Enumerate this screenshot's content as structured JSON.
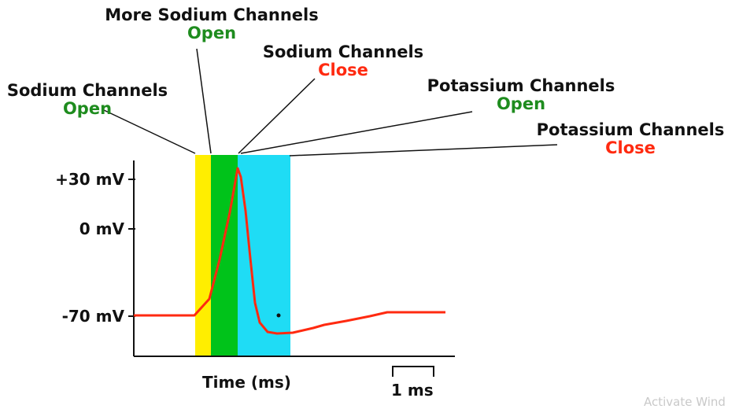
{
  "diagram": {
    "annotations": [
      {
        "id": "sodium-open",
        "title": "Sodium Channels",
        "state": "Open"
      },
      {
        "id": "more-sodium-open",
        "title": "More Sodium Channels",
        "state": "Open"
      },
      {
        "id": "sodium-close",
        "title": "Sodium Channels",
        "state": "Close"
      },
      {
        "id": "potassium-open",
        "title": "Potassium Channels",
        "state": "Open"
      },
      {
        "id": "potassium-close",
        "title": "Potassium Channels",
        "state": "Close"
      }
    ],
    "y_ticks": [
      {
        "label": "+30 mV",
        "value": 30
      },
      {
        "label": "0 mV",
        "value": 0
      },
      {
        "label": "-70 mV",
        "value": -70
      }
    ],
    "x_label": "Time (ms)",
    "scale_bar_label": "1 ms",
    "colors": {
      "sodium_open_band": "#ffee00",
      "more_sodium_band": "#00c31a",
      "potassium_band": "#1fdcf5",
      "trace": "#ff2a10",
      "open_text": "#1e8c1e",
      "close_text": "#ff2a10"
    },
    "watermark": "Activate Wind"
  }
}
